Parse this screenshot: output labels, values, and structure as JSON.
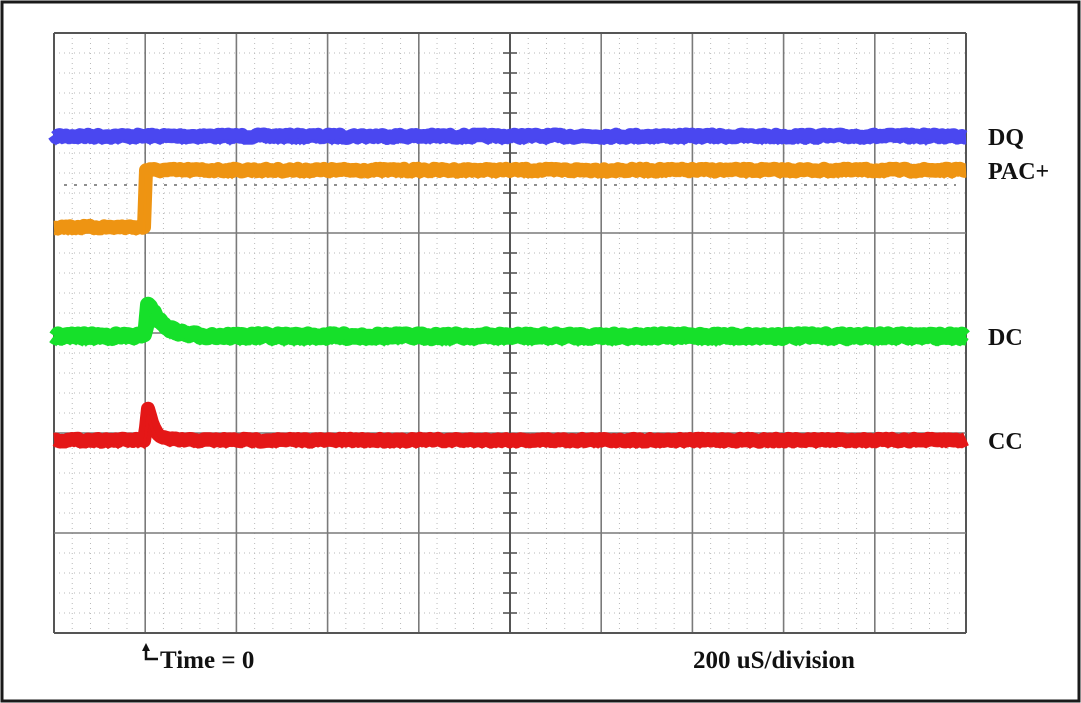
{
  "chart_data": {
    "type": "line",
    "title": "",
    "grid": true,
    "divisions": {
      "x": 10,
      "y": 6
    },
    "x_scale_label": "200 uS/division",
    "trigger_label": "Time = 0",
    "trigger_division": 1,
    "series": [
      {
        "name": "DQ",
        "color": "#4a47f0",
        "baseline_div": 1.03,
        "step_at_div": 1,
        "after_div": 1.03,
        "spike_div": 0,
        "noise": 0.03,
        "thickness": 14
      },
      {
        "name": "PAC+",
        "color": "#ee9412",
        "baseline_div": 1.94,
        "step_at_div": 1,
        "after_div": 1.37,
        "spike_div": 0,
        "noise": 0.025,
        "thickness": 14
      },
      {
        "name": "DC",
        "color": "#16e02a",
        "baseline_div": 3.03,
        "step_at_div": 1,
        "after_div": 3.03,
        "spike_div": -0.42,
        "noise": 0.035,
        "thickness": 16
      },
      {
        "name": "CC",
        "color": "#e41717",
        "baseline_div": 4.07,
        "step_at_div": 1,
        "after_div": 4.07,
        "spike_div": -0.52,
        "noise": 0.025,
        "thickness": 14
      }
    ]
  }
}
